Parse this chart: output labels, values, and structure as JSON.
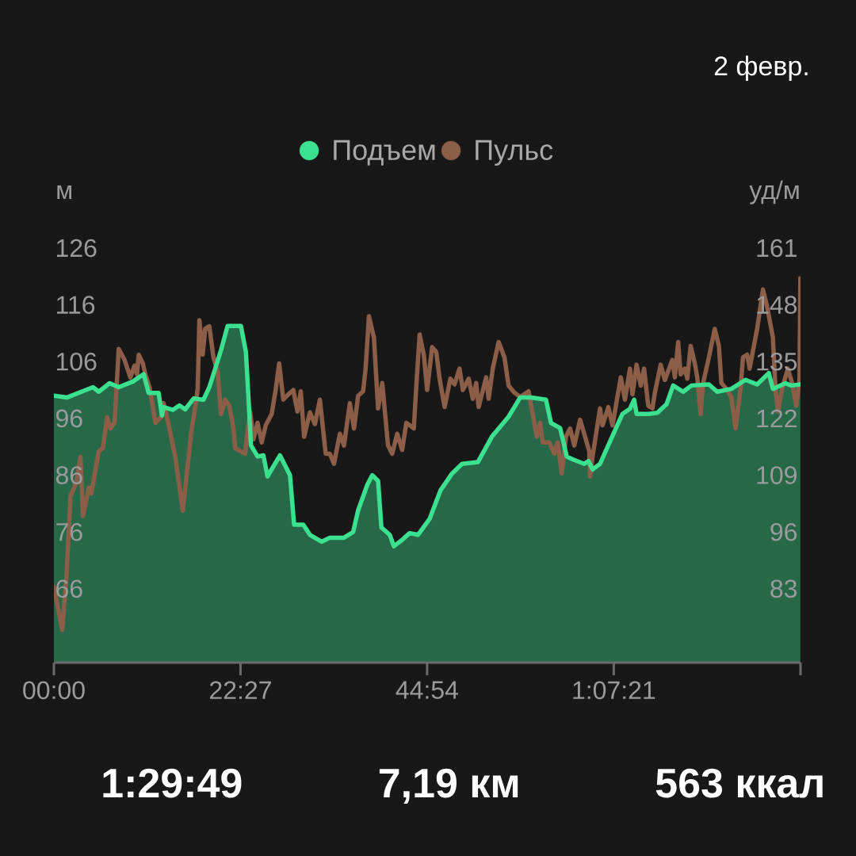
{
  "chart_data": {
    "type": "area",
    "title": "2 февр.",
    "ylabel": "м",
    "y2label": "уд/м",
    "legend": "top",
    "xlim": [
      0,
      89.82
    ],
    "xticks": [
      {
        "value": 0,
        "label": "00:00"
      },
      {
        "value": 22.45,
        "label": "22:27"
      },
      {
        "value": 44.9,
        "label": "44:54"
      },
      {
        "value": 67.35,
        "label": "1:07:21"
      },
      {
        "value": 89.82,
        "label": null
      }
    ],
    "ylim": [
      53,
      126
    ],
    "yticks": [
      66,
      76,
      86,
      96,
      106,
      116,
      126
    ],
    "y2lim": [
      66.1,
      161
    ],
    "y2ticks": [
      83,
      96,
      109,
      122,
      135,
      148,
      161
    ],
    "series": [
      {
        "name": "Подъем",
        "color": "#3be18f",
        "x": [
          0,
          1.6,
          4.7,
          5.4,
          6.7,
          7.8,
          9.5,
          10.8,
          11.4,
          12.6,
          13.0,
          13.2,
          14.3,
          15.1,
          15.8,
          16.8,
          18.0,
          18.7,
          20.1,
          20.9,
          22.5,
          23.1,
          23.5,
          23.7,
          24.5,
          25.2,
          25.7,
          27.2,
          28.4,
          28.9,
          30.0,
          30.8,
          32.2,
          33.2,
          34.9,
          36.0,
          36.6,
          37.7,
          38.3,
          39.0,
          39.4,
          40.4,
          40.9,
          41.8,
          42.8,
          43.8,
          45.2,
          46.5,
          47.9,
          49.1,
          51.0,
          52.7,
          54.7,
          56.1,
          57.4,
          59.2,
          59.8,
          60.9,
          61.7,
          62.4,
          63.8,
          64.3,
          64.8,
          65.7,
          66.7,
          68.4,
          69.3,
          69.8,
          70.1,
          71.6,
          72.6,
          73.7,
          74.5,
          75.7,
          76.7,
          78.8,
          79.8,
          81.5,
          83.2,
          84.6,
          86.0,
          86.5,
          88.0,
          88.7,
          89.8
        ],
        "values": [
          100.0,
          99.7,
          101.5,
          100.7,
          102.2,
          101.5,
          102.5,
          103.8,
          100.5,
          100.5,
          96.5,
          98.0,
          97.5,
          98.3,
          97.6,
          99.5,
          99.3,
          101.5,
          108.0,
          112.3,
          112.3,
          107.7,
          97.2,
          91.3,
          89.3,
          89.5,
          85.8,
          89.5,
          86.0,
          77.3,
          77.3,
          75.5,
          74.3,
          75.0,
          75.0,
          76.0,
          79.8,
          84.3,
          86.0,
          85.0,
          76.8,
          75.5,
          73.5,
          74.5,
          75.8,
          75.5,
          78.3,
          83.3,
          86.3,
          88.0,
          88.3,
          92.8,
          96.3,
          99.7,
          99.7,
          99.3,
          95.2,
          94.3,
          89.3,
          88.8,
          88.0,
          88.5,
          87.0,
          88.0,
          91.3,
          96.8,
          97.7,
          99.3,
          96.8,
          96.8,
          97.0,
          98.5,
          101.8,
          100.7,
          101.8,
          102.0,
          100.7,
          101.2,
          102.8,
          102.0,
          104.0,
          101.2,
          102.2,
          101.8,
          102.0
        ]
      },
      {
        "name": "Пульс",
        "type": "line",
        "axis": "y2",
        "color": "#8c5e48",
        "x": [
          0,
          1.0,
          1.5,
          2.0,
          2.7,
          3.2,
          3.5,
          4.2,
          4.5,
          5.4,
          5.9,
          6.4,
          6.8,
          7.3,
          7.8,
          8.5,
          9.2,
          9.7,
          10.0,
          10.2,
          10.7,
          11.0,
          11.5,
          12.0,
          12.2,
          12.9,
          13.2,
          13.9,
          14.6,
          15.5,
          16.0,
          16.5,
          17.1,
          17.3,
          17.5,
          17.9,
          18.2,
          18.7,
          19.2,
          19.7,
          20.1,
          20.6,
          21.1,
          21.6,
          21.8,
          23.0,
          23.1,
          23.6,
          24.0,
          24.5,
          25.0,
          25.5,
          26.2,
          26.7,
          27.1,
          27.6,
          28.2,
          28.8,
          29.3,
          29.7,
          30.1,
          30.8,
          31.4,
          32.0,
          32.7,
          33.2,
          33.7,
          34.4,
          34.9,
          35.6,
          36.1,
          36.6,
          37.2,
          37.5,
          37.9,
          38.5,
          39.0,
          39.5,
          40.2,
          40.7,
          41.3,
          41.9,
          42.4,
          43.3,
          43.6,
          44.0,
          44.5,
          44.9,
          45.5,
          46.0,
          46.4,
          47.0,
          47.7,
          48.2,
          48.8,
          49.2,
          49.9,
          50.4,
          50.8,
          51.1,
          52.0,
          52.3,
          52.8,
          53.5,
          54.2,
          54.7,
          55.4,
          56.1,
          57.1,
          57.6,
          58.1,
          58.5,
          58.8,
          59.6,
          60.2,
          60.6,
          61.1,
          61.6,
          62.1,
          62.6,
          63.3,
          63.8,
          64.4,
          64.5,
          64.8,
          65.7,
          66.0,
          66.7,
          67.2,
          68.2,
          68.7,
          69.3,
          69.6,
          70.1,
          70.6,
          71.0,
          71.5,
          72.0,
          72.3,
          73.0,
          73.5,
          74.4,
          74.7,
          75.1,
          75.4,
          75.9,
          76.2,
          76.6,
          77.1,
          77.4,
          77.8,
          78.1,
          78.8,
          79.5,
          80.0,
          80.3,
          80.9,
          81.5,
          82.0,
          82.6,
          82.9,
          83.4,
          83.7,
          84.6,
          85.3,
          85.8,
          86.5,
          86.8,
          87.1,
          87.6,
          88.3,
          88.8,
          89.3,
          89.7,
          89.8
        ],
        "values": [
          83.4,
          73.6,
          85.4,
          104.1,
          107.4,
          113.2,
          99.6,
          106.1,
          104.8,
          114.5,
          115.2,
          122.3,
          119.7,
          121.0,
          137.9,
          135.4,
          131.4,
          134.1,
          132.1,
          136.6,
          134.6,
          132.1,
          129.2,
          123.6,
          121.0,
          122.3,
          125.5,
          119.7,
          113.2,
          100.9,
          109.4,
          118.5,
          125.9,
          128.8,
          144.5,
          136.6,
          142.5,
          143.1,
          136.0,
          132.7,
          123.0,
          126.3,
          124.9,
          119.7,
          115.2,
          113.9,
          115.9,
          123.6,
          117.2,
          121.0,
          116.5,
          120.5,
          123.0,
          128.8,
          134.6,
          126.3,
          127.5,
          128.5,
          123.6,
          128.2,
          117.8,
          123.4,
          120.7,
          126.3,
          113.9,
          113.9,
          111.6,
          118.5,
          115.8,
          125.5,
          119.7,
          127.2,
          128.2,
          133.4,
          145.4,
          140.5,
          124.3,
          130.1,
          115.8,
          113.9,
          118.5,
          114.8,
          121.0,
          119.7,
          129.5,
          141.2,
          136.6,
          128.5,
          138.3,
          137.2,
          131.1,
          124.6,
          131.1,
          129.8,
          133.4,
          128.5,
          131.1,
          126.5,
          130.1,
          124.6,
          131.4,
          126.5,
          133.4,
          139.5,
          136.0,
          129.5,
          127.9,
          126.9,
          128.2,
          123.0,
          117.8,
          121.0,
          116.5,
          116.5,
          113.9,
          116.5,
          109.4,
          117.8,
          119.7,
          115.8,
          121.7,
          118.5,
          114.5,
          108.7,
          113.2,
          124.3,
          120.4,
          124.6,
          120.4,
          131.4,
          126.3,
          133.4,
          127.5,
          134.3,
          129.5,
          133.4,
          124.9,
          124.3,
          127.9,
          134.3,
          130.8,
          135.4,
          131.4,
          139.5,
          132.1,
          133.4,
          131.1,
          138.6,
          134.6,
          131.4,
          123.0,
          130.1,
          136.0,
          142.5,
          138.6,
          130.1,
          128.8,
          126.9,
          119.7,
          128.8,
          136.0,
          136.6,
          133.4,
          142.5,
          151.5,
          147.6,
          140.5,
          128.8,
          123.6,
          128.8,
          133.4,
          130.1,
          124.9,
          130.8,
          154.1
        ]
      }
    ],
    "annotations": [
      "1:29:49",
      "7,19 км",
      "563 ккал"
    ]
  }
}
